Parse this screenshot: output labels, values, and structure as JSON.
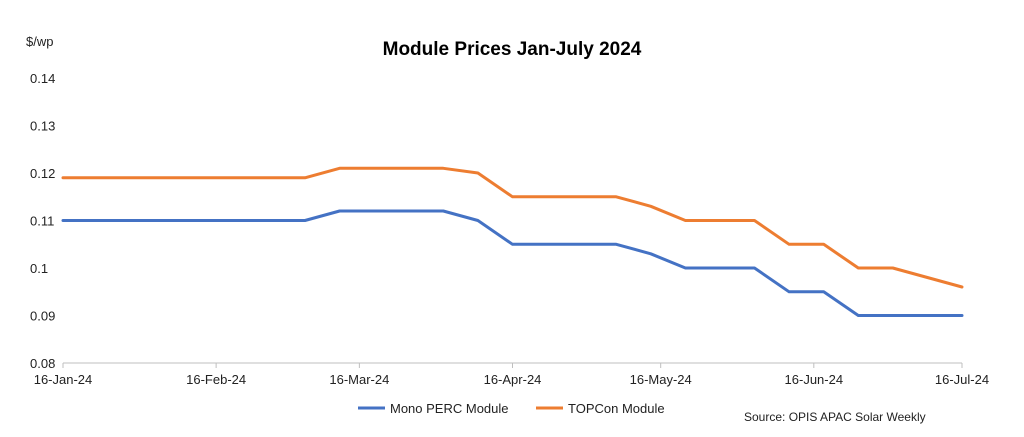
{
  "chart_data": {
    "type": "line",
    "title": "Module Prices Jan-July 2024",
    "ylabel": "$/wp",
    "xlabel": "",
    "ylim": [
      0.08,
      0.14
    ],
    "yticks": [
      0.08,
      0.09,
      0.1,
      0.11,
      0.12,
      0.13,
      0.14
    ],
    "ytick_labels": [
      "0.08",
      "0.09",
      "0.1",
      "0.11",
      "0.12",
      "0.13",
      "0.14"
    ],
    "xlim": [
      0,
      182
    ],
    "xticks": [
      0,
      31,
      60,
      91,
      121,
      152,
      182
    ],
    "xtick_labels": [
      "16-Jan-24",
      "16-Feb-24",
      "16-Mar-24",
      "16-Apr-24",
      "16-May-24",
      "16-Jun-24",
      "16-Jul-24"
    ],
    "grid": false,
    "legend_position": "bottom",
    "source": "Source: OPIS APAC Solar Weekly",
    "series": [
      {
        "name": "Mono PERC Module",
        "color": "#4472C4",
        "x": [
          0,
          49,
          56,
          77,
          84,
          91,
          112,
          119,
          126,
          140,
          147,
          154,
          161,
          182
        ],
        "values": [
          0.11,
          0.11,
          0.112,
          0.112,
          0.11,
          0.105,
          0.105,
          0.103,
          0.1,
          0.1,
          0.095,
          0.095,
          0.09,
          0.09
        ]
      },
      {
        "name": "TOPCon Module",
        "color": "#ED7D31",
        "x": [
          0,
          49,
          56,
          77,
          84,
          91,
          112,
          119,
          126,
          140,
          147,
          154,
          161,
          168,
          182
        ],
        "values": [
          0.119,
          0.119,
          0.121,
          0.121,
          0.12,
          0.115,
          0.115,
          0.113,
          0.11,
          0.11,
          0.105,
          0.105,
          0.1,
          0.1,
          0.096
        ]
      }
    ]
  }
}
